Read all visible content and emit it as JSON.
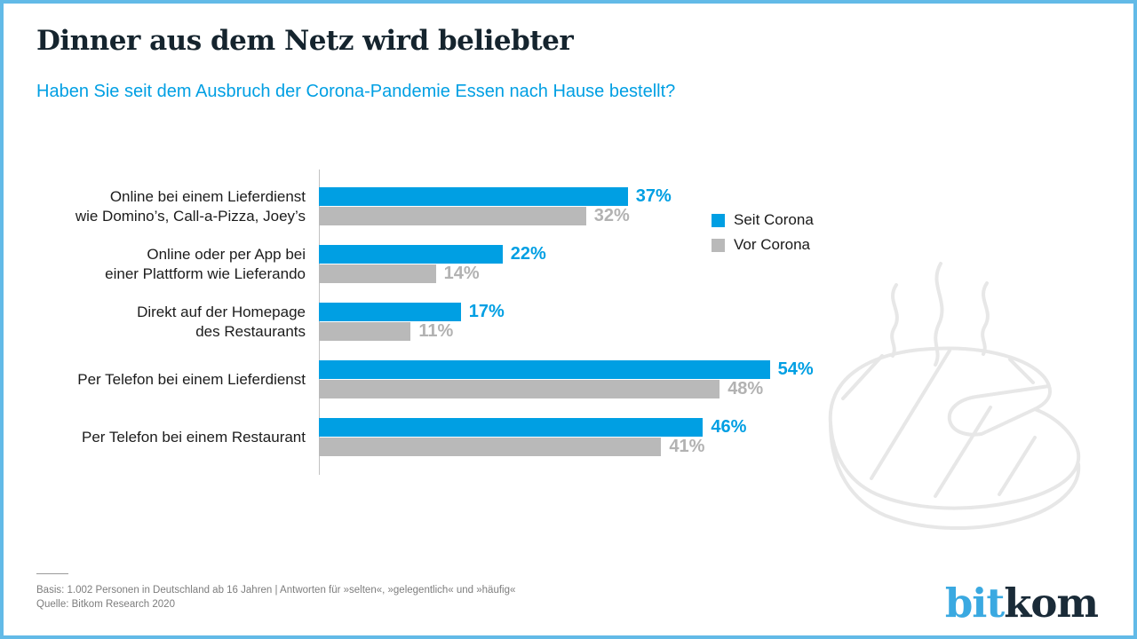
{
  "header": {
    "title": "Dinner aus dem Netz wird beliebter",
    "subtitle": "Haben Sie seit dem Ausbruch der Corona-Pandemie Essen nach Hause bestellt?"
  },
  "chart_data": {
    "type": "bar",
    "orientation": "horizontal",
    "title": "Haben Sie seit dem Ausbruch der Corona-Pandemie Essen nach Hause bestellt?",
    "categories": [
      "Online bei einem Lieferdienst\nwie Domino’s, Call-a-Pizza, Joey’s",
      "Online oder per App bei\neiner Plattform wie Lieferando",
      "Direkt auf der Homepage\ndes Restaurants",
      "Per Telefon bei einem Lieferdienst",
      "Per Telefon bei einem Restaurant"
    ],
    "series": [
      {
        "name": "Seit Corona",
        "color": "#009fe3",
        "values": [
          37,
          22,
          17,
          54,
          46
        ]
      },
      {
        "name": "Vor Corona",
        "color": "#b9b9b9",
        "values": [
          32,
          14,
          11,
          48,
          41
        ]
      }
    ],
    "unit": "%",
    "value_label_colors": [
      "#009fe3",
      "#b2b2b2"
    ],
    "xlim": [
      0,
      60
    ],
    "grid": false,
    "legend_position": "right"
  },
  "legend": {
    "items": [
      {
        "label": "Seit Corona",
        "color": "#009fe3",
        "icon": "blue-square-swatch"
      },
      {
        "label": "Vor Corona",
        "color": "#b9b9b9",
        "icon": "gray-square-swatch"
      }
    ]
  },
  "footer": {
    "basis": "Basis: 1.002 Personen in Deutschland ab 16 Jahren | Antworten für »selten«, »gelegentlich« und »häufig«",
    "source": "Quelle: Bitkom Research 2020"
  },
  "logo": {
    "part1": "bit",
    "part2": "kom"
  },
  "decoration": {
    "icon": "steaming-steak-icon",
    "color": "#e7e7e7"
  },
  "colors": {
    "accent_blue": "#009fe3",
    "bar_gray": "#b9b9b9",
    "title_dark": "#15242e",
    "page_border": "#62bae7"
  }
}
